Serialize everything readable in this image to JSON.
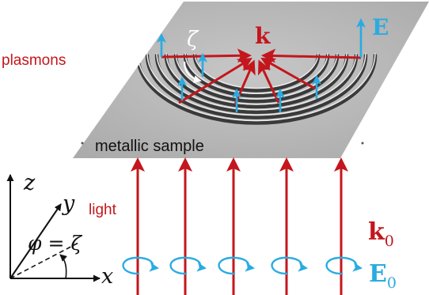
{
  "labels": {
    "plasmons": "plasmons",
    "metallic_sample": "metallic sample",
    "light": "light",
    "k": "k",
    "E": "E",
    "zeta": "ζ",
    "k0_main": "k",
    "k0_sub": "0",
    "E0_main": "E",
    "E0_sub": "0"
  },
  "axes": {
    "z": "z",
    "y": "y",
    "x": "x",
    "phi_eq": "φ = ζ"
  },
  "colors": {
    "red": "#c4161c",
    "blue": "#29abe2",
    "sample_gray": "#b9b9b9",
    "text": "#111111"
  },
  "icons": {
    "circular_polarization": "circular-arrow-icon",
    "wave_vector": "arrow-icon"
  }
}
